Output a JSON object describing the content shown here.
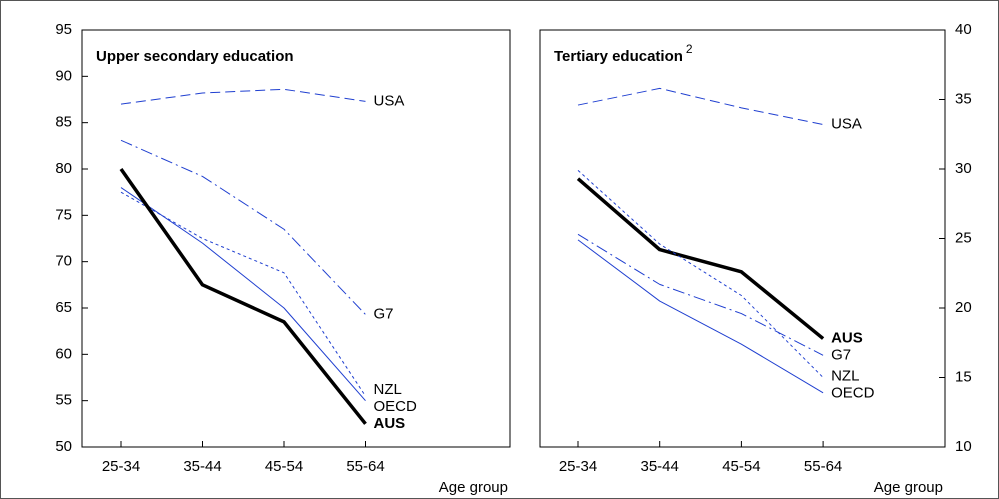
{
  "chart_data": [
    {
      "type": "line",
      "title": "Upper secondary education",
      "x_label": "Age group",
      "y_axis": "left",
      "categories": [
        "25-34",
        "35-44",
        "45-54",
        "55-64"
      ],
      "ylim": [
        50,
        95
      ],
      "yticks": [
        50,
        55,
        60,
        65,
        70,
        75,
        80,
        85,
        90,
        95
      ],
      "series": [
        {
          "name": "USA",
          "color": "#1f3fd0",
          "dash": "10,5",
          "width": 1,
          "bold": false,
          "values": [
            87,
            88.2,
            88.6,
            87.3
          ]
        },
        {
          "name": "G7",
          "color": "#1f3fd0",
          "dash": "12,4,2,4",
          "width": 1,
          "bold": false,
          "values": [
            83.1,
            79.2,
            73.5,
            64.3
          ]
        },
        {
          "name": "NZL",
          "color": "#1f3fd0",
          "dash": "3,3",
          "width": 1,
          "bold": false,
          "values": [
            77.5,
            72.5,
            68.8,
            55.5
          ]
        },
        {
          "name": "OECD",
          "color": "#1f3fd0",
          "dash": "none",
          "width": 1,
          "bold": false,
          "values": [
            78,
            72,
            65,
            55
          ]
        },
        {
          "name": "AUS",
          "color": "#000000",
          "dash": "none",
          "width": 3.5,
          "bold": true,
          "values": [
            80,
            67.5,
            63.5,
            52.5
          ]
        }
      ]
    },
    {
      "type": "line",
      "title": "Tertiary education",
      "title_note": "2",
      "x_label": "Age group",
      "y_axis": "right",
      "categories": [
        "25-34",
        "35-44",
        "45-54",
        "55-64"
      ],
      "ylim": [
        10,
        40
      ],
      "yticks": [
        10,
        15,
        20,
        25,
        30,
        35,
        40
      ],
      "series": [
        {
          "name": "USA",
          "color": "#1f3fd0",
          "dash": "10,5",
          "width": 1,
          "bold": false,
          "values": [
            34.6,
            35.8,
            34.4,
            33.2
          ]
        },
        {
          "name": "AUS",
          "color": "#000000",
          "dash": "none",
          "width": 3.5,
          "bold": true,
          "values": [
            29.3,
            24.2,
            22.6,
            17.8
          ]
        },
        {
          "name": "G7",
          "color": "#1f3fd0",
          "dash": "12,4,2,4",
          "width": 1,
          "bold": false,
          "values": [
            25.3,
            21.7,
            19.6,
            16.6
          ]
        },
        {
          "name": "NZL",
          "color": "#1f3fd0",
          "dash": "3,3",
          "width": 1,
          "bold": false,
          "values": [
            29.9,
            24.6,
            20.9,
            15.0
          ]
        },
        {
          "name": "OECD",
          "color": "#1f3fd0",
          "dash": "none",
          "width": 1,
          "bold": false,
          "values": [
            24.9,
            20.5,
            17.4,
            13.9
          ]
        }
      ]
    }
  ]
}
